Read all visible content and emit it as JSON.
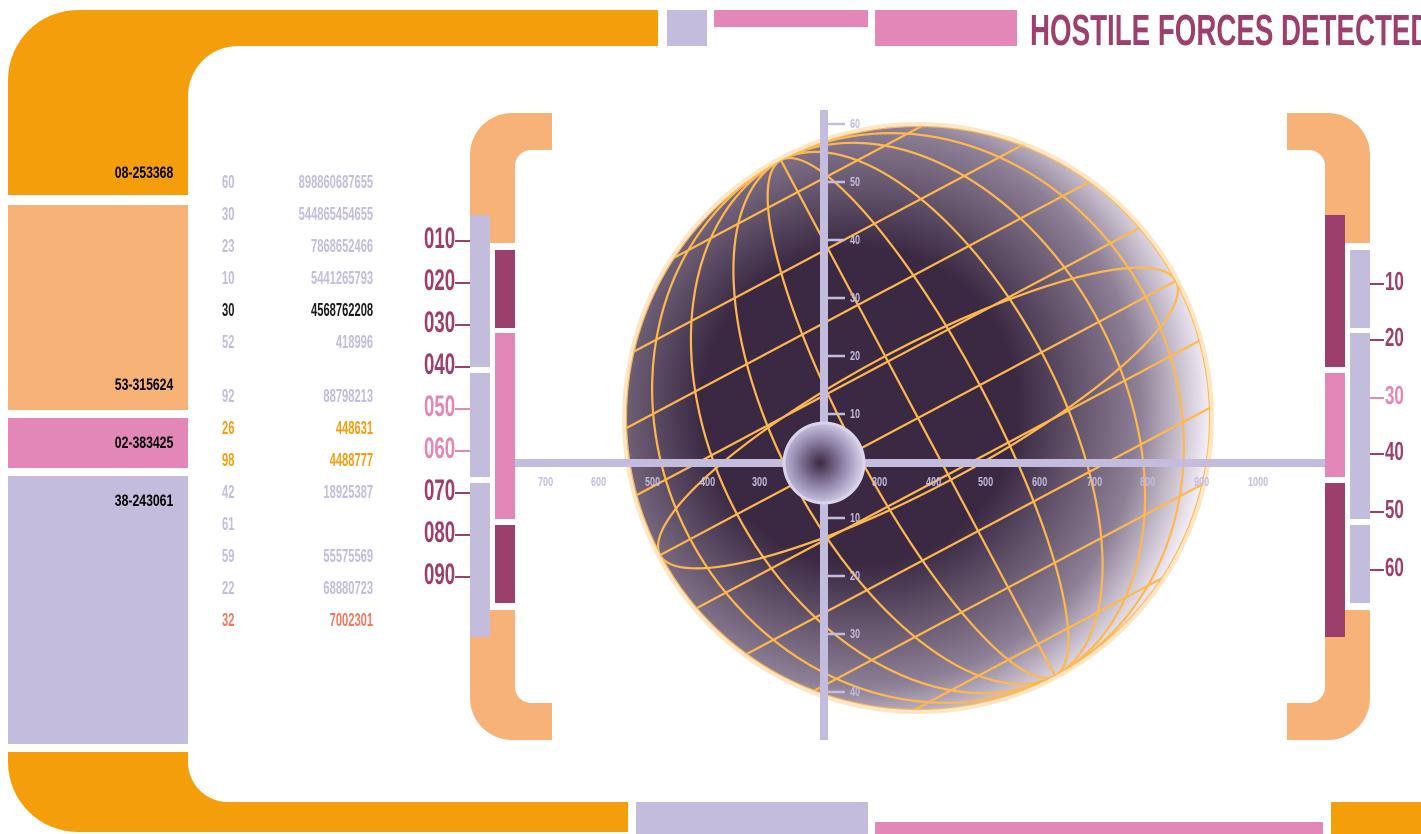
{
  "colors": {
    "orange": "#f59e0b",
    "peach": "#f7b278",
    "pink": "#e287b7",
    "lavender": "#c3bcdc",
    "plum": "#9c3f6c",
    "dark": "#3b2943",
    "salmon": "#f2795b",
    "grid": "#ffb84d"
  },
  "header": {
    "title": "HOSTILE FORCES DETECTED"
  },
  "sidebar": {
    "labels": [
      "08-253368",
      "53-315624",
      "02-383425",
      "38-243061"
    ]
  },
  "readout": {
    "rows": [
      {
        "a": "60",
        "b": "898860687655",
        "color": "#c3bcdc"
      },
      {
        "a": "30",
        "b": "544865454655",
        "color": "#c3bcdc"
      },
      {
        "a": "23",
        "b": "7868652466",
        "color": "#c3bcdc"
      },
      {
        "a": "10",
        "b": "5441265793",
        "color": "#c3bcdc"
      },
      {
        "a": "30",
        "b": "4568762208",
        "color": "#1a1a1a"
      },
      {
        "a": "52",
        "b": "418996",
        "color": "#c3bcdc"
      },
      {
        "a": "92",
        "b": "88798213",
        "color": "#c3bcdc"
      },
      {
        "a": "26",
        "b": "448631",
        "color": "#f59e0b"
      },
      {
        "a": "98",
        "b": "4488777",
        "color": "#f59e0b"
      },
      {
        "a": "42",
        "b": "18925387",
        "color": "#c3bcdc"
      },
      {
        "a": "61",
        "b": "",
        "color": "#c3bcdc"
      },
      {
        "a": "59",
        "b": "55575569",
        "color": "#c3bcdc"
      },
      {
        "a": "22",
        "b": "68880723",
        "color": "#c3bcdc"
      },
      {
        "a": "32",
        "b": "7002301",
        "color": "#f2795b"
      }
    ]
  },
  "left_scale": {
    "labels": [
      "010",
      "020",
      "030",
      "040",
      "050",
      "060",
      "070",
      "080",
      "090"
    ],
    "colors": [
      "#9c3f6c",
      "#9c3f6c",
      "#9c3f6c",
      "#9c3f6c",
      "#e287b7",
      "#e287b7",
      "#9c3f6c",
      "#9c3f6c",
      "#9c3f6c"
    ]
  },
  "right_scale": {
    "labels": [
      "10",
      "20",
      "30",
      "40",
      "50",
      "60"
    ],
    "colors": [
      "#9c3f6c",
      "#9c3f6c",
      "#e287b7",
      "#9c3f6c",
      "#9c3f6c",
      "#9c3f6c"
    ]
  },
  "crosshair": {
    "x_ticks_left": [
      "700",
      "600",
      "500",
      "400",
      "300"
    ],
    "x_ticks_right": [
      "300",
      "400",
      "500",
      "600",
      "700",
      "800",
      "900",
      "1000"
    ],
    "y_ticks_up": [
      "60",
      "50",
      "40",
      "30",
      "20",
      "10"
    ],
    "y_ticks_down": [
      "10",
      "20",
      "30",
      "40"
    ]
  }
}
